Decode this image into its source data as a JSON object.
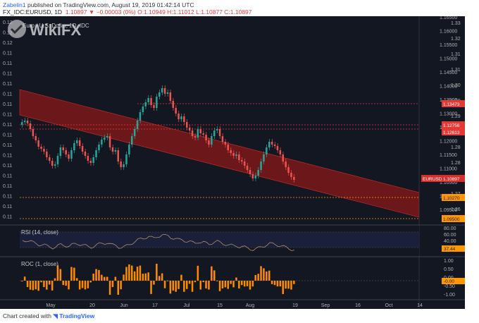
{
  "header": {
    "publisher_user": "Zabelin1",
    "publisher_text": " published on TradingView.com, August 19, 2019 01:42:14 UTC",
    "symbol": "FX_IDC:EURUSD, 1D",
    "last": "1.10897",
    "change_arrow": "▼",
    "change": "−0.00003 (0%)",
    "ohlc": "O:1.10949 H:1.11012 L:1.10877 C:1.10897"
  },
  "main": {
    "title": "Euro / U.S. Dollar, 1D, IDC",
    "left_axis_labels": [
      "0.12",
      "0.12",
      "0.12",
      "0.11",
      "0.11",
      "0.11",
      "0.11",
      "0.11",
      "0.11",
      "0.11",
      "0.11",
      "0.11",
      "0.11",
      "0.11",
      "0.11",
      "0.11",
      "0.11",
      "0.11",
      "0.11",
      "0.11"
    ],
    "right_axis_labels": [
      "1.16500",
      "1.16000",
      "1.15500",
      "1.15000",
      "1.14500",
      "1.14000",
      "1.13500",
      "1.13000",
      "1.12500",
      "1.12000",
      "1.11500",
      "1.11000",
      "1.10500",
      "1.10000",
      "1.09500"
    ],
    "right_axis_labels_2": [
      "1.33",
      "1.32",
      "1.31",
      "1.31",
      "1.30",
      "1.30",
      "1.29",
      "1.29",
      "1.28",
      "1.28",
      "1.27",
      "1.27",
      "1.26"
    ],
    "tags": {
      "r1": "1.13473",
      "r2": "1.12756",
      "r3": "1.12613",
      "eurusd_label": "EURUSD",
      "last_price": "1.10897",
      "s1": "1.10270",
      "s2": "1.09500"
    }
  },
  "rsi": {
    "title": "RSI (14, close)",
    "axis": [
      "80.00",
      "60.00",
      "40.00",
      "20.00"
    ],
    "value": "37.44"
  },
  "roc": {
    "title": "ROC (1, close)",
    "axis": [
      "1.00",
      "0.50",
      "0.00",
      "-0.50",
      "-1.00"
    ],
    "value": "-0.00"
  },
  "x_axis": [
    "May",
    "20",
    "Jun",
    "17",
    "Jul",
    "15",
    "Aug",
    "19",
    "Sep",
    "16",
    "Oct",
    "14"
  ],
  "footer": {
    "created_with": "Chart created with",
    "tv_logo": "TradingView"
  },
  "watermark": "WikiFX",
  "colors": {
    "background": "#131722",
    "candle_up": "#26a69a",
    "candle_down": "#ef5350",
    "channel": "#c62828",
    "resistance": "#e53935",
    "support": "#ff9800",
    "roc_bar": "#ff8c00",
    "rsi_line": "#b0906a"
  }
}
